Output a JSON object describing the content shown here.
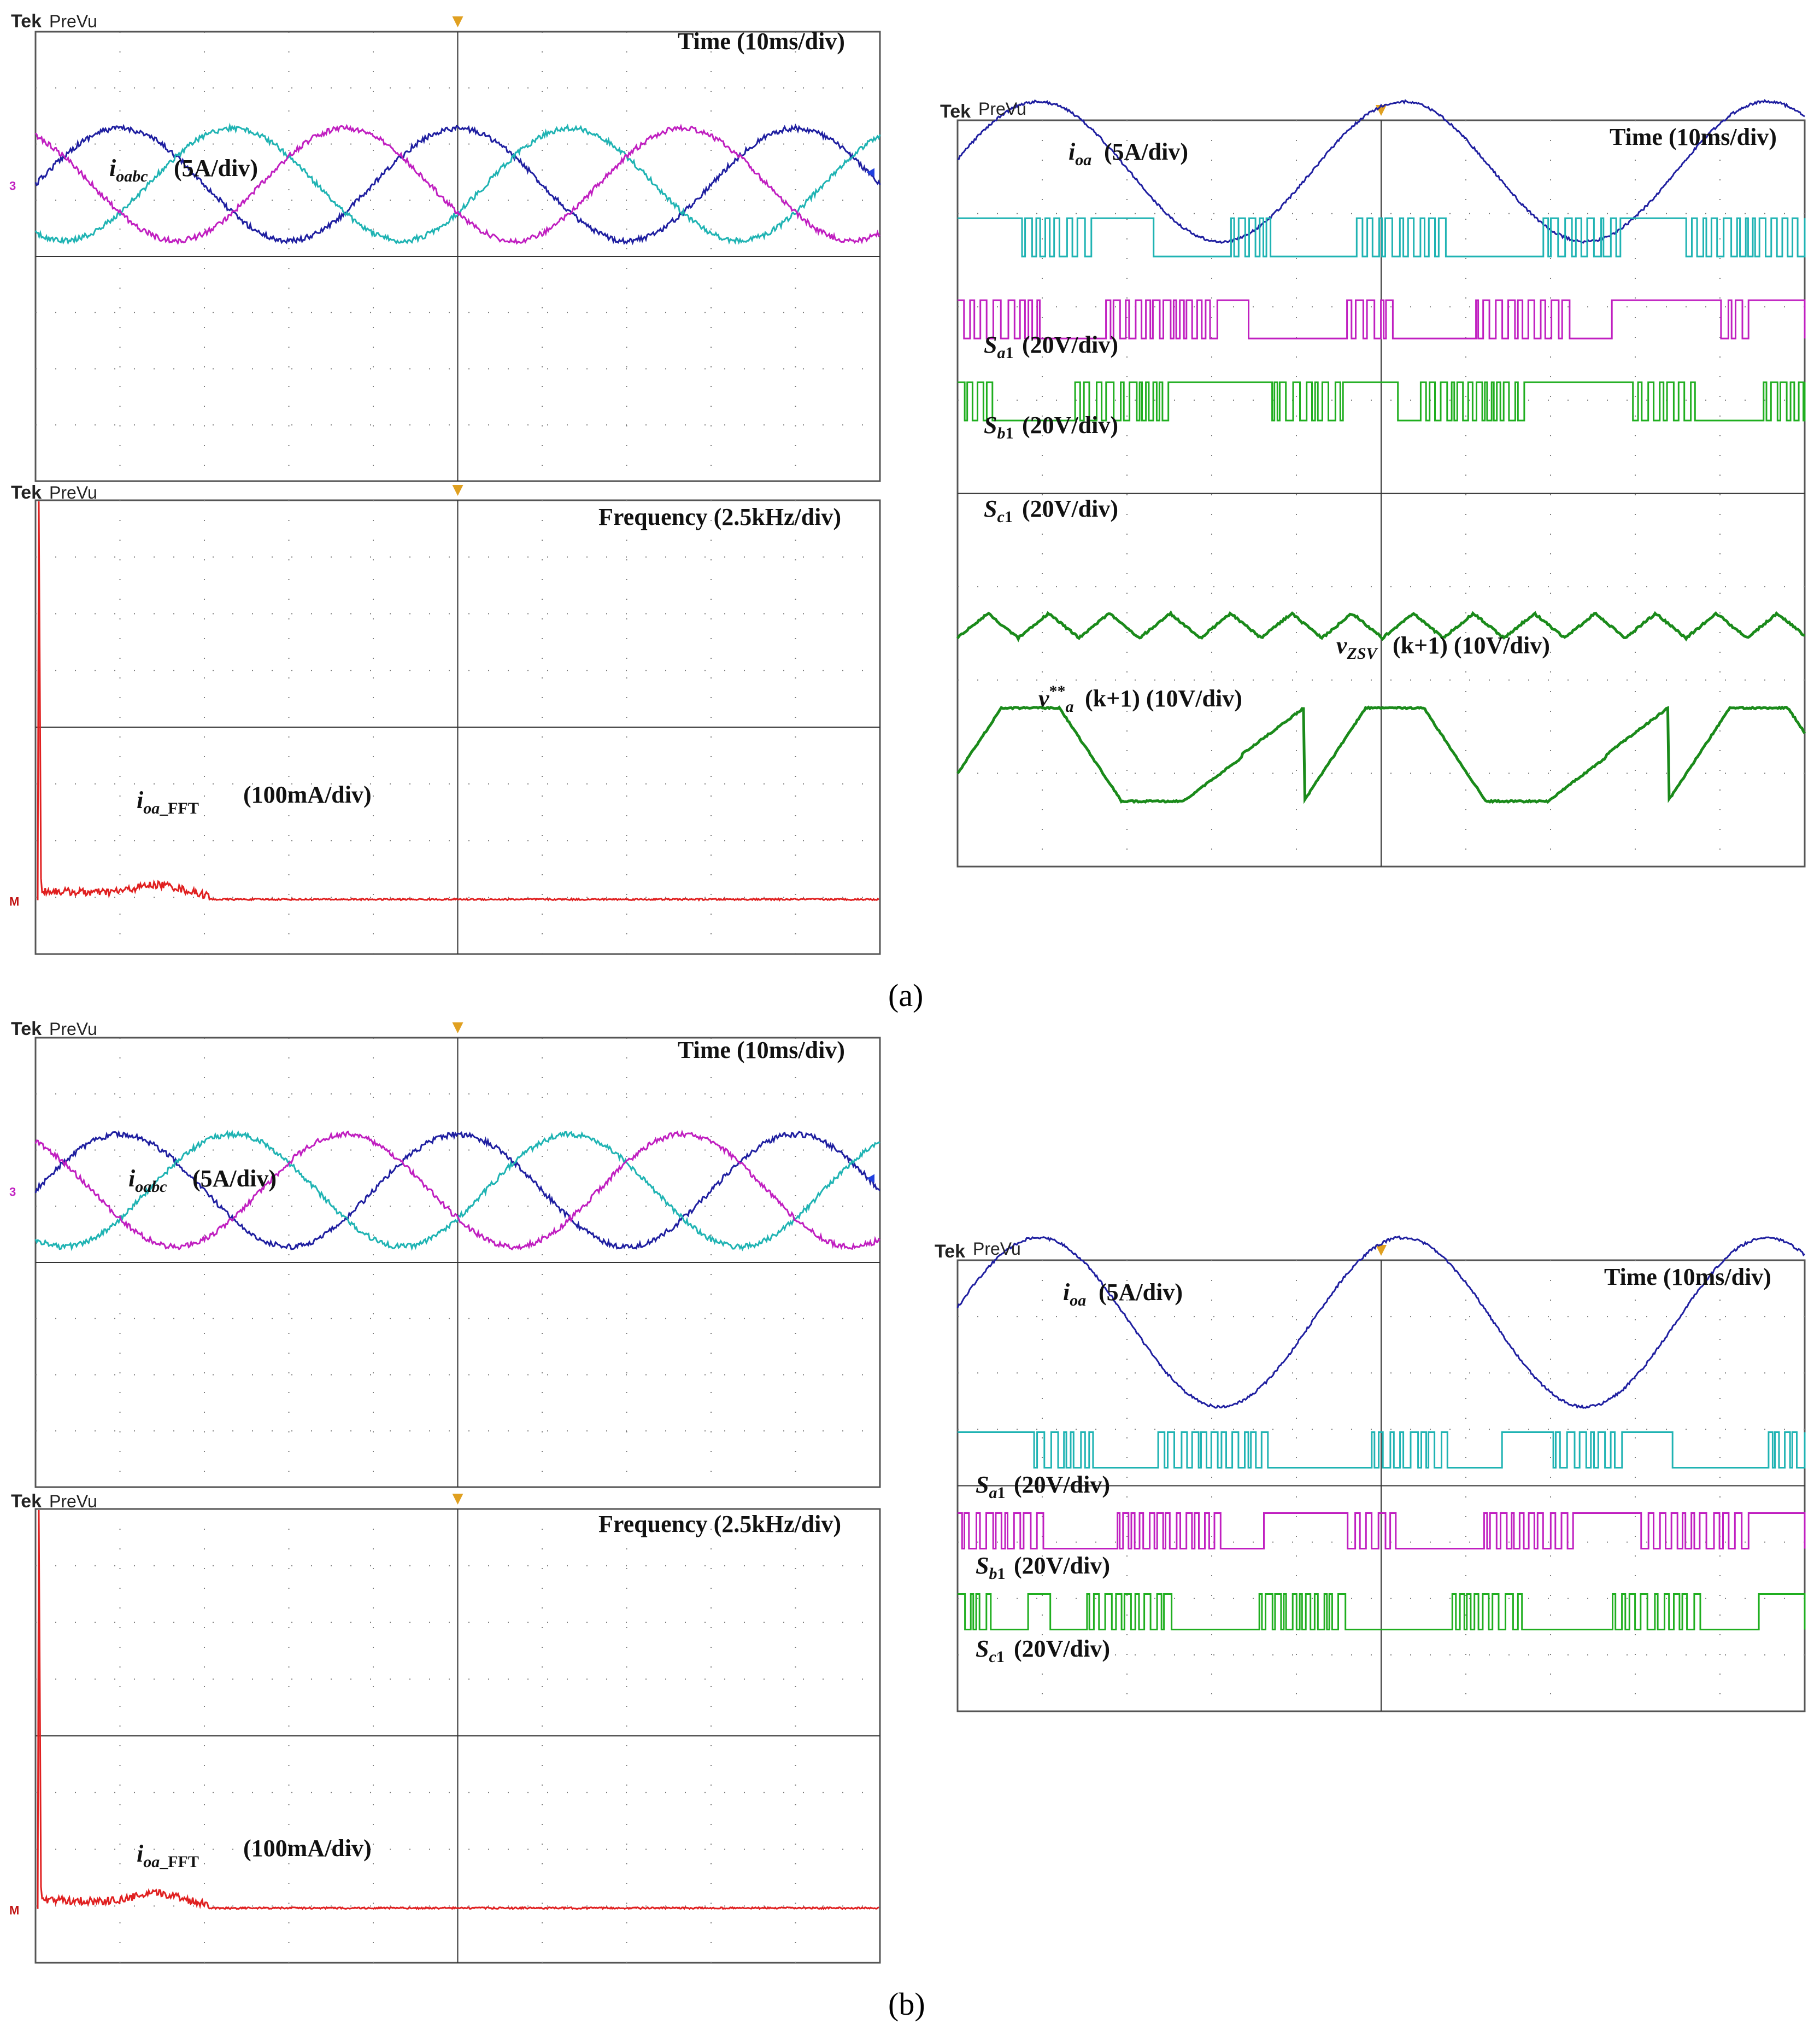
{
  "figure": {
    "captions": [
      "(a)",
      "(b)"
    ]
  },
  "colors": {
    "ch1_blue": "#1f1fa0",
    "ch2_cyan": "#1fb3b3",
    "ch3_magenta": "#c01fc0",
    "ch4_green": "#1fae1f",
    "fft_red": "#e02020",
    "grid": "#7a7a7a",
    "trigger": "#e0a020"
  },
  "scope": {
    "brand": "Tek",
    "mode": "PreVu"
  },
  "labels": {
    "time": "Time (10ms/div)",
    "frequency": "Frequency (2.5kHz/div)",
    "ioabc": "(5A/div)",
    "ioa": "(5A/div)",
    "fft": "(100mA/div)",
    "sa1": "(20V/div)",
    "sb1": "(20V/div)",
    "sc1": "(20V/div)",
    "vzsv": "(k+1) (10V/div)",
    "va": "(k+1) (10V/div)"
  },
  "chart_data": [
    {
      "type": "line",
      "panel": "a-time-3phase",
      "xlabel": "Time (10ms/div)",
      "ylabel": "i_oabc (5A/div)",
      "series": [
        {
          "name": "i_oa",
          "color": "ch1_blue",
          "amplitude_div": 1.0,
          "period_div": 4.0,
          "phase_deg": 0
        },
        {
          "name": "i_ob",
          "color": "ch2_cyan",
          "amplitude_div": 1.0,
          "period_div": 4.0,
          "phase_deg": -120
        },
        {
          "name": "i_oc",
          "color": "ch3_magenta",
          "amplitude_div": 1.0,
          "period_div": 4.0,
          "phase_deg": 120
        }
      ],
      "x_divisions": 10,
      "y_divisions": 8
    },
    {
      "type": "line",
      "panel": "a-fft",
      "xlabel": "Frequency (2.5kHz/div)",
      "ylabel": "i_oa_FFT (100mA/div)",
      "series": [
        {
          "name": "i_oa_FFT",
          "color": "fft_red",
          "fundamental_peak_div": 7.4
        }
      ],
      "x_divisions": 10,
      "y_divisions": 8
    },
    {
      "type": "line",
      "panel": "a-signals",
      "xlabel": "Time (10ms/div)",
      "series": [
        {
          "name": "i_oa (5A/div)",
          "color": "ch1_blue"
        },
        {
          "name": "S_a1 (20V/div)",
          "color": "ch2_cyan"
        },
        {
          "name": "S_b1 (20V/div)",
          "color": "ch3_magenta"
        },
        {
          "name": "S_c1 (20V/div)",
          "color": "ch4_green"
        },
        {
          "name": "v_ZSV(k+1) (10V/div)",
          "color": "ch4_green"
        },
        {
          "name": "v**_a(k+1) (10V/div)",
          "color": "ch4_green"
        }
      ],
      "x_divisions": 10,
      "y_divisions": 8
    },
    {
      "type": "line",
      "panel": "b-time-3phase",
      "xlabel": "Time (10ms/div)",
      "ylabel": "i_oabc (5A/div)",
      "series": [
        {
          "name": "i_oa",
          "color": "ch1_blue",
          "amplitude_div": 1.0,
          "period_div": 4.0,
          "phase_deg": 0
        },
        {
          "name": "i_ob",
          "color": "ch2_cyan",
          "amplitude_div": 1.0,
          "period_div": 4.0,
          "phase_deg": -120
        },
        {
          "name": "i_oc",
          "color": "ch3_magenta",
          "amplitude_div": 1.0,
          "period_div": 4.0,
          "phase_deg": 120
        }
      ],
      "x_divisions": 10,
      "y_divisions": 8
    },
    {
      "type": "line",
      "panel": "b-fft",
      "xlabel": "Frequency (2.5kHz/div)",
      "ylabel": "i_oa_FFT (100mA/div)",
      "series": [
        {
          "name": "i_oa_FFT",
          "color": "fft_red",
          "fundamental_peak_div": 7.4
        }
      ],
      "x_divisions": 10,
      "y_divisions": 8
    },
    {
      "type": "line",
      "panel": "b-signals",
      "xlabel": "Time (10ms/div)",
      "series": [
        {
          "name": "i_oa (5A/div)",
          "color": "ch1_blue"
        },
        {
          "name": "S_a1 (20V/div)",
          "color": "ch2_cyan"
        },
        {
          "name": "S_b1 (20V/div)",
          "color": "ch3_magenta"
        },
        {
          "name": "S_c1 (20V/div)",
          "color": "ch4_green"
        }
      ],
      "x_divisions": 10,
      "y_divisions": 8
    }
  ]
}
